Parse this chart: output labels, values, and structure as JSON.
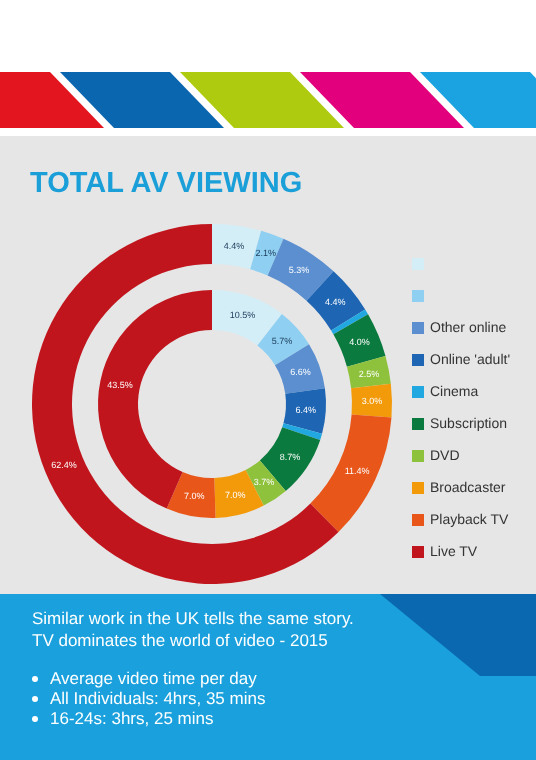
{
  "chart_data": {
    "type": "donut",
    "title": "TOTAL AV VIEWING",
    "categories": [
      null,
      null,
      "Other online",
      "Online 'adult'",
      "Cinema",
      "Subscription",
      "DVD",
      "Broadcaster",
      "Playback TV",
      "Live TV"
    ],
    "colors": [
      "#d4eef8",
      "#8fd0f2",
      "#5b8fd0",
      "#1e66b4",
      "#22a8e0",
      "#0b7a3e",
      "#8fc23c",
      "#f39a0b",
      "#e8561a",
      "#c0151d"
    ],
    "series": [
      {
        "values": [
          4.4,
          2.1,
          5.3,
          4.4,
          0.5,
          4.0,
          2.5,
          3.0,
          11.4,
          62.4
        ],
        "value_labels": [
          "4.4%",
          "2.1%",
          "5.3%",
          "4.4%",
          null,
          "4.0%",
          "2.5%",
          "3.0%",
          "11.4%",
          "62.4%"
        ]
      },
      {
        "values": [
          10.5,
          5.7,
          6.6,
          6.4,
          0.9,
          8.7,
          3.7,
          7.0,
          7.0,
          43.5
        ],
        "value_labels": [
          "10.5%",
          "5.7%",
          "6.6%",
          "6.4%",
          null,
          "8.7%",
          "3.7%",
          "7.0%",
          "7.0%",
          "43.5%"
        ]
      }
    ],
    "legend": "right",
    "annotations": [
      "Similar work in the UK tells the same story.",
      "TV dominates the world of video - 2015",
      "Average video time per day",
      "All Individuals: 4hrs, 35 mins",
      "16-24s: 3hrs, 25 mins"
    ]
  }
}
